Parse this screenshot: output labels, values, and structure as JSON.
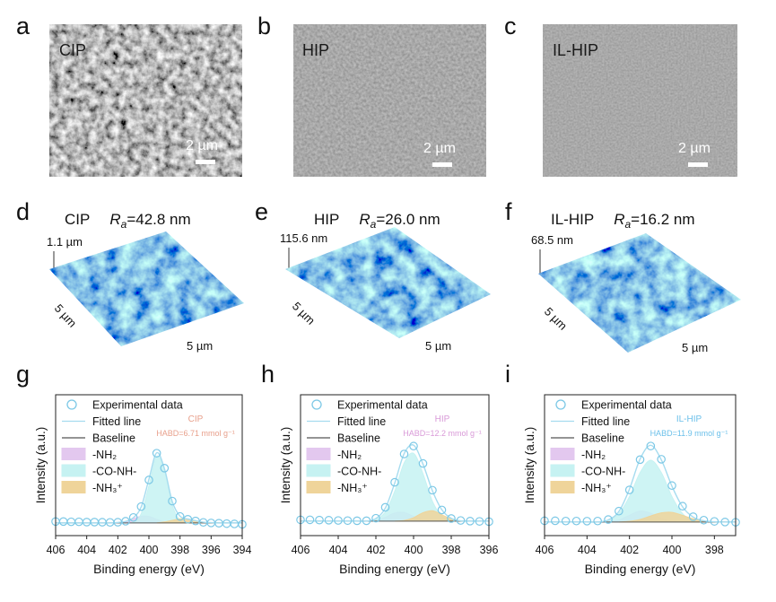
{
  "sem": [
    {
      "panel": "a",
      "sample": "CIP",
      "scale_bar": "2 µm"
    },
    {
      "panel": "b",
      "sample": "HIP",
      "scale_bar": "2 µm"
    },
    {
      "panel": "c",
      "sample": "IL-HIP",
      "scale_bar": "2 µm"
    }
  ],
  "afm": [
    {
      "panel": "d",
      "sample": "CIP",
      "ra_symbol": "R",
      "ra_subscript": "a",
      "ra_value": "=42.8 nm",
      "z_max": "1.1 µm",
      "x_size": "5 µm",
      "y_size": "5 µm"
    },
    {
      "panel": "e",
      "sample": "HIP",
      "ra_symbol": "R",
      "ra_subscript": "a",
      "ra_value": "=26.0 nm",
      "z_max": "115.6 nm",
      "x_size": "5 µm",
      "y_size": "5 µm"
    },
    {
      "panel": "f",
      "sample": "IL-HIP",
      "ra_symbol": "R",
      "ra_subscript": "a",
      "ra_value": "=16.2 nm",
      "z_max": "68.5 nm",
      "x_size": "5 µm",
      "y_size": "5 µm"
    }
  ],
  "chart_data": [
    {
      "type": "line",
      "panel": "g",
      "x_label": "Binding energy (eV)",
      "y_label": "Intensity (a.u.)",
      "x": [
        406,
        405.5,
        405,
        404.5,
        404,
        403.5,
        403,
        402.5,
        402,
        401.5,
        401,
        400.5,
        400,
        399.5,
        399,
        398.5,
        398,
        397.5,
        397,
        396.5,
        396,
        395.5,
        395,
        394.5,
        394
      ],
      "xlim": [
        406,
        394
      ],
      "xticks": [
        406,
        404,
        402,
        400,
        398,
        396,
        394
      ],
      "ylim": [
        0,
        100
      ],
      "legend": "top-left",
      "series": [
        {
          "name": "Experimental data",
          "style": "markers",
          "color": "#7cc8e6",
          "values": [
            10,
            10,
            9.8,
            9.8,
            9.6,
            9.6,
            9.5,
            9.4,
            9.5,
            10.2,
            12.9,
            20.6,
            39.5,
            58.5,
            47.9,
            24.5,
            13.6,
            11.6,
            10.4,
            9.4,
            9,
            8.8,
            8.5,
            8.3,
            8
          ]
        },
        {
          "name": "Fitted line",
          "style": "fit",
          "color": "#a6dcef",
          "values": [
            9,
            9,
            9,
            9,
            9,
            9,
            9,
            9,
            9.3,
            10.1,
            12.7,
            20.3,
            40,
            58.8,
            47.5,
            24.2,
            13.8,
            11.8,
            10.6,
            9.5,
            9.2,
            9,
            9,
            9,
            9
          ]
        },
        {
          "name": "Baseline",
          "style": "baseline",
          "color": "#555555",
          "values": [
            9,
            9,
            9,
            9,
            9,
            9,
            9,
            9,
            9,
            9,
            9,
            9,
            9,
            9,
            9,
            9,
            9,
            9,
            9,
            9,
            9,
            9,
            9,
            9,
            9
          ]
        },
        {
          "name": "-NH₂",
          "style": "area",
          "color": "#e3c8ef",
          "values": [
            null,
            null,
            null,
            null,
            null,
            null,
            null,
            9,
            9.3,
            10.1,
            12,
            13.8,
            13.6,
            11.6,
            9.9,
            9.2,
            9,
            null,
            null,
            null,
            null,
            null,
            null,
            null,
            null
          ]
        },
        {
          "name": "-CO-NH-",
          "style": "area",
          "color": "#c6f2f2",
          "values": [
            null,
            null,
            null,
            null,
            null,
            null,
            null,
            null,
            9,
            9,
            9.7,
            15.5,
            35.4,
            56.2,
            45.9,
            21.6,
            10.9,
            9.1,
            9,
            null,
            null,
            null,
            null,
            null,
            null
          ]
        },
        {
          "name": "-NH₃⁺",
          "style": "area",
          "color": "#efd49a",
          "values": [
            null,
            null,
            null,
            null,
            null,
            null,
            null,
            null,
            null,
            null,
            null,
            null,
            null,
            9,
            9.7,
            10.8,
            11.9,
            11.7,
            10.6,
            9.5,
            9.2,
            9,
            null,
            null,
            null
          ]
        }
      ],
      "annotations": [
        {
          "text": "CIP",
          "color": "#e8a08c"
        },
        {
          "text": "HABD=6.71 mmol g⁻¹",
          "color": "#e8a08c"
        }
      ]
    },
    {
      "type": "line",
      "panel": "h",
      "x_label": "Binding energy (eV)",
      "y_label": "Intensity (a.u.)",
      "x": [
        406,
        405.5,
        405,
        404.5,
        404,
        403.5,
        403,
        402.5,
        402,
        401.5,
        401,
        400.5,
        400,
        399.5,
        399,
        398.5,
        398,
        397.5,
        397,
        396.5,
        396
      ],
      "xlim": [
        406,
        396
      ],
      "xticks": [
        406,
        404,
        402,
        400,
        398,
        396
      ],
      "ylim": [
        0,
        107
      ],
      "legend": "top-left",
      "series": [
        {
          "name": "Experimental data",
          "style": "markers",
          "color": "#7cc8e6",
          "values": [
            12,
            12,
            11.8,
            11.7,
            11.5,
            11.4,
            11.3,
            11.3,
            13.2,
            21.5,
            40.5,
            62,
            68,
            54.8,
            34.5,
            19.5,
            13,
            11.5,
            11,
            10.8,
            10.6
          ]
        },
        {
          "name": "Fitted line",
          "style": "fit",
          "color": "#a6dcef",
          "values": [
            11,
            11,
            11,
            11,
            11,
            11,
            11,
            11,
            13,
            20.9,
            39.9,
            62.3,
            68.7,
            54.3,
            34.1,
            19.7,
            13.1,
            11.2,
            11,
            11,
            11
          ]
        },
        {
          "name": "Baseline",
          "style": "baseline",
          "color": "#555555",
          "values": [
            11,
            11,
            11,
            11,
            11,
            11,
            11,
            11,
            11,
            11,
            11,
            11,
            11,
            11,
            11,
            11,
            11,
            11,
            11,
            11,
            11
          ]
        },
        {
          "name": "-NH₂",
          "style": "area",
          "color": "#e3c8ef",
          "values": [
            null,
            null,
            null,
            null,
            null,
            null,
            null,
            11,
            11.7,
            13.9,
            17.2,
            17.6,
            14.6,
            11.9,
            11.1,
            11,
            null,
            null,
            null,
            null,
            null
          ]
        },
        {
          "name": "-CO-NH-",
          "style": "area",
          "color": "#c6f2f2",
          "values": [
            null,
            null,
            null,
            null,
            null,
            null,
            null,
            11,
            12.3,
            18,
            33.7,
            55.2,
            62.5,
            47,
            26.1,
            14.8,
            11.6,
            11,
            null,
            null,
            null
          ]
        },
        {
          "name": "-NH₃⁺",
          "style": "area",
          "color": "#efd49a",
          "values": [
            null,
            null,
            null,
            null,
            null,
            null,
            null,
            null,
            null,
            null,
            11,
            11.5,
            13.6,
            17.4,
            18.9,
            15.9,
            12.5,
            11.2,
            11,
            null,
            null
          ]
        }
      ],
      "annotations": [
        {
          "text": "HIP",
          "color": "#d99ad8"
        },
        {
          "text": "HABD=12.2 mmol g⁻¹",
          "color": "#d99ad8"
        }
      ]
    },
    {
      "type": "line",
      "panel": "i",
      "x_label": "Binding energy (eV)",
      "y_label": "Intensity (a.u.)",
      "x": [
        406,
        405.5,
        405,
        404.5,
        404,
        403.5,
        403,
        402.5,
        402,
        401.5,
        401,
        400.5,
        400,
        399.5,
        399,
        398.5,
        398,
        397.5,
        397
      ],
      "xlim": [
        406,
        397
      ],
      "xticks": [
        406,
        404,
        402,
        400,
        398
      ],
      "ylim": [
        0,
        114
      ],
      "legend": "top-left",
      "series": [
        {
          "name": "Experimental data",
          "style": "markers",
          "color": "#7cc8e6",
          "values": [
            12,
            12,
            11.8,
            11.8,
            11.7,
            11.8,
            13,
            19.8,
            37,
            61.5,
            72.5,
            61.8,
            40.5,
            23.8,
            15.3,
            12.5,
            11.5,
            11,
            10.8
          ]
        },
        {
          "name": "Fitted line",
          "style": "fit",
          "color": "#a6dcef",
          "values": [
            11,
            11,
            11,
            11,
            11,
            11,
            12.7,
            19.5,
            37.7,
            62,
            73.1,
            61.3,
            40,
            23.3,
            15,
            12,
            11.2,
            11,
            11
          ]
        },
        {
          "name": "Baseline",
          "style": "baseline",
          "color": "#555555",
          "values": [
            11,
            11,
            11,
            11,
            11,
            11,
            11,
            11,
            11,
            11,
            11,
            11,
            11,
            11,
            11,
            11,
            11,
            11,
            11
          ]
        },
        {
          "name": "-NH₂",
          "style": "area",
          "color": "#e3c8ef",
          "values": [
            null,
            null,
            null,
            null,
            null,
            11,
            11.3,
            12.7,
            16.5,
            19.9,
            18.2,
            13.9,
            11.6,
            11.1,
            11,
            null,
            null,
            null,
            null
          ]
        },
        {
          "name": "-CO-NH-",
          "style": "area",
          "color": "#c6f2f2",
          "values": [
            null,
            null,
            null,
            null,
            null,
            11,
            12.4,
            17.8,
            31.6,
            51,
            61,
            51,
            31.6,
            17.8,
            12.4,
            11.2,
            11,
            null,
            null
          ]
        },
        {
          "name": "-NH₃⁺",
          "style": "area",
          "color": "#efd49a",
          "values": [
            null,
            null,
            null,
            null,
            null,
            null,
            null,
            11,
            11.6,
            13.1,
            15.9,
            18.4,
            18.8,
            16.4,
            13.6,
            11.8,
            11.2,
            11,
            null
          ]
        }
      ],
      "annotations": [
        {
          "text": "IL-HIP",
          "color": "#6cc0ea"
        },
        {
          "text": "HABD=11.9 mmol g⁻¹",
          "color": "#6cc0ea"
        }
      ]
    }
  ]
}
